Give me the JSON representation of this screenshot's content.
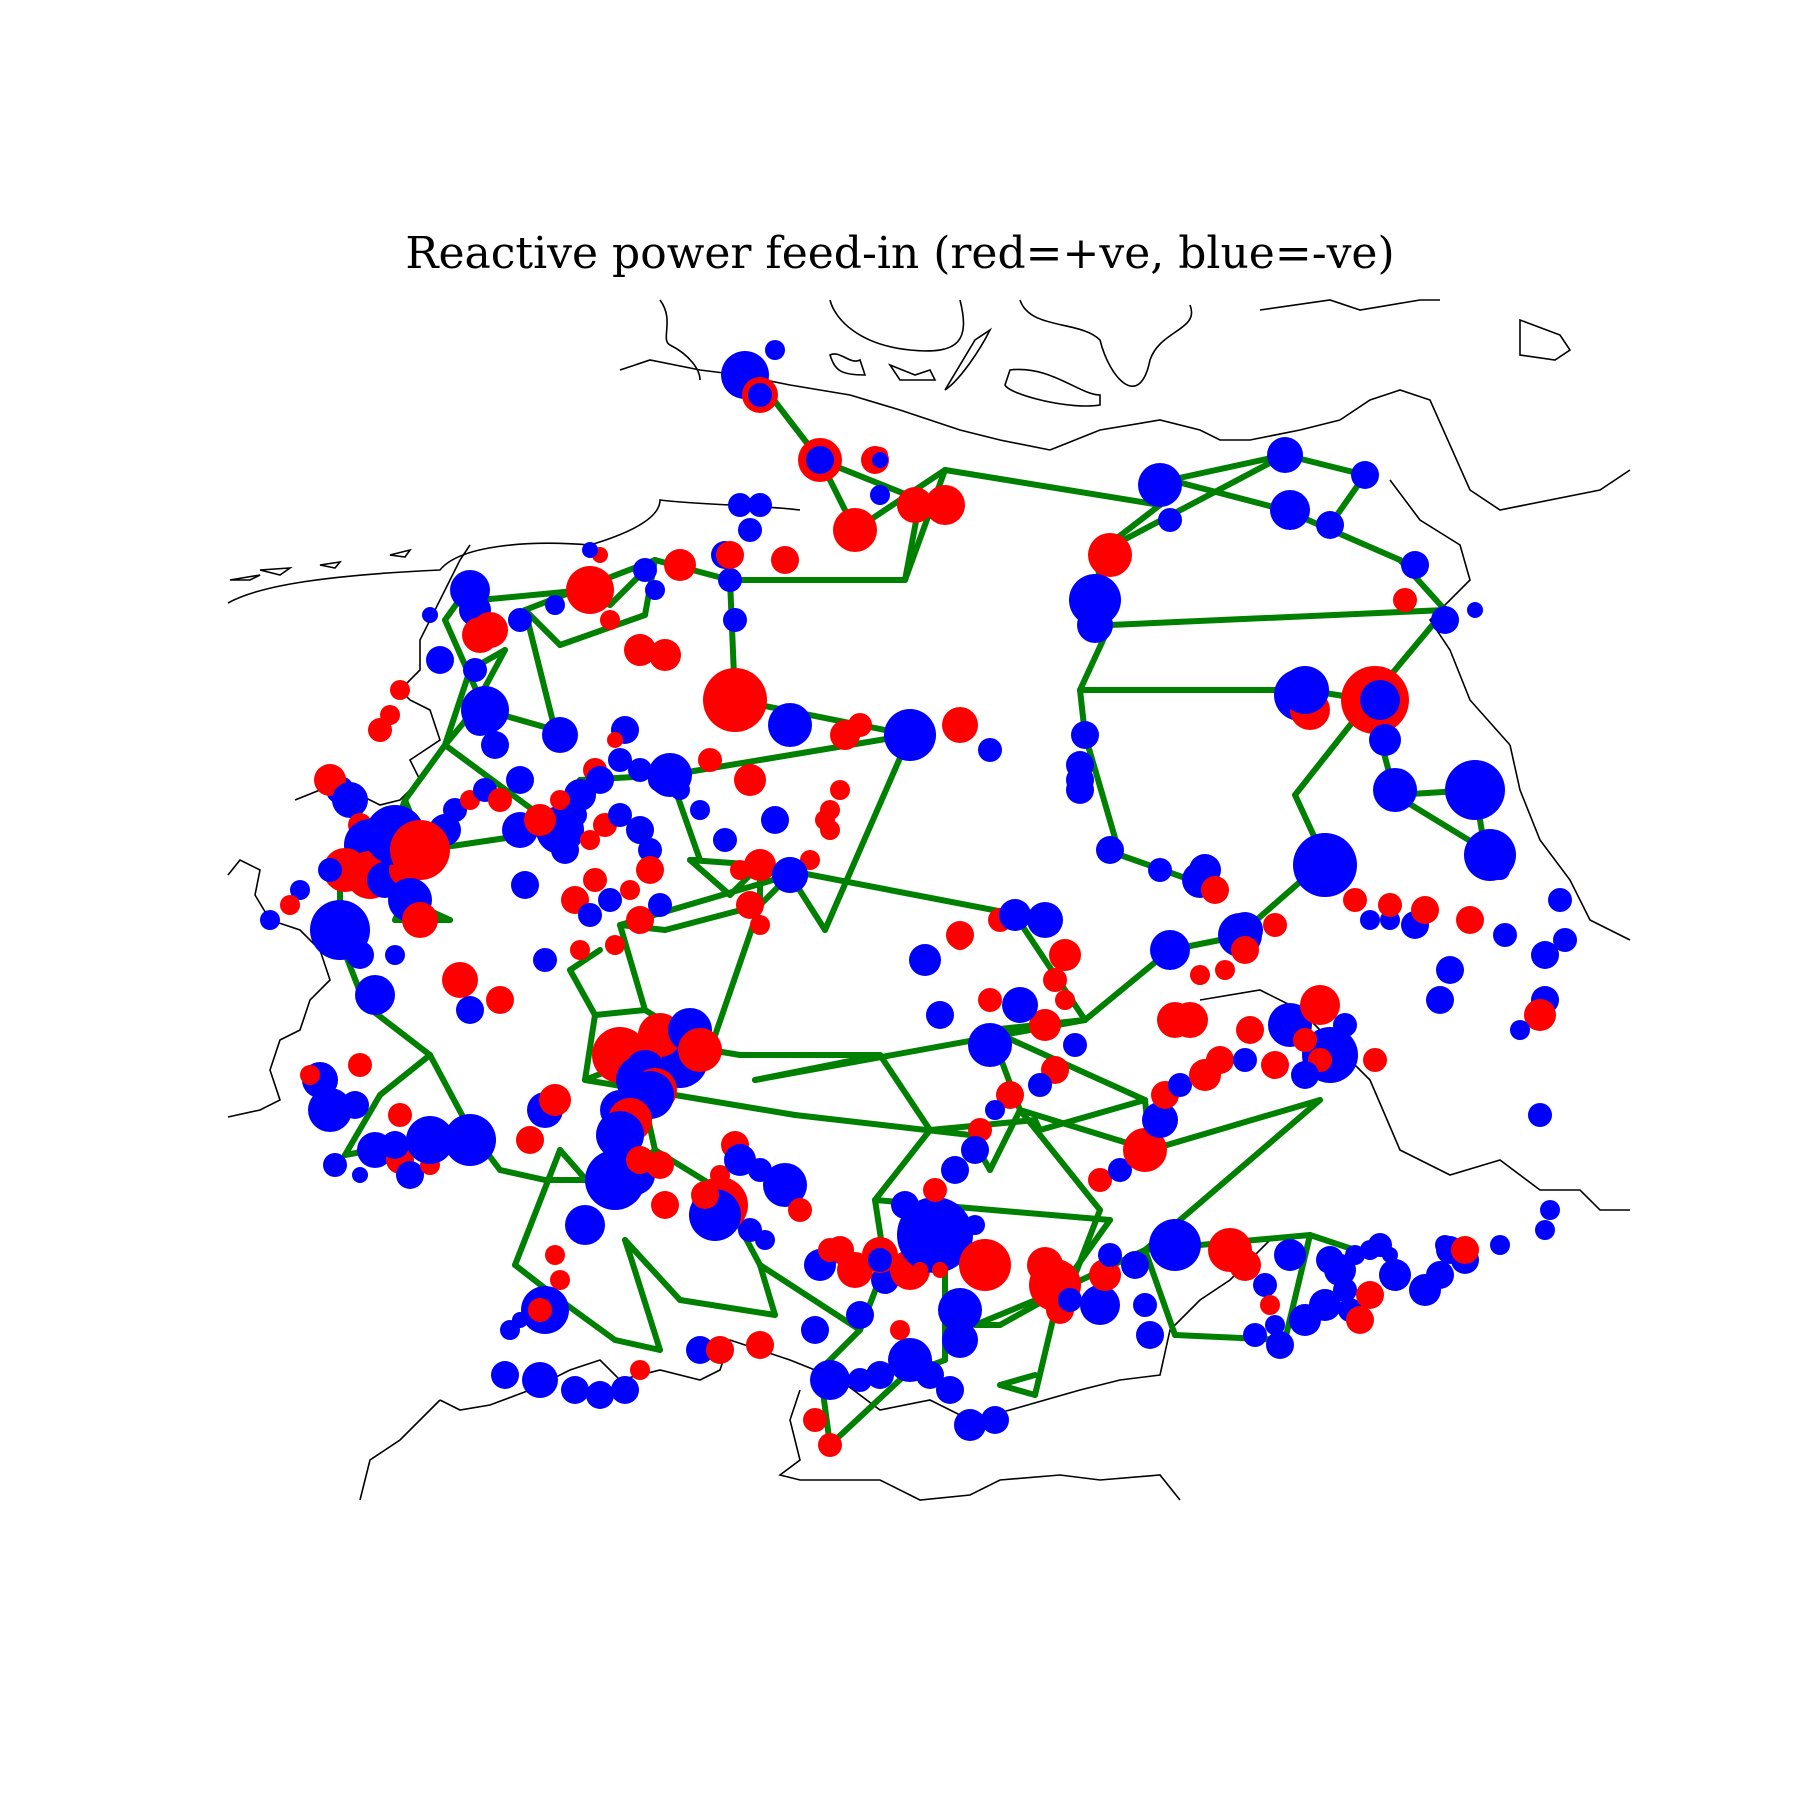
{
  "title": "Reactive power feed-in (red=+ve, blue=-ve)",
  "legend_colors": {
    "positive": "#ff0000",
    "negative": "#0000ff",
    "line": "#008000",
    "border": "#000000"
  },
  "chart_data": {
    "type": "map",
    "title": "Reactive power feed-in (red=+ve, blue=-ve)",
    "buses_positive_count_approx": 120,
    "buses_negative_count_approx": 200,
    "note": ""
  }
}
